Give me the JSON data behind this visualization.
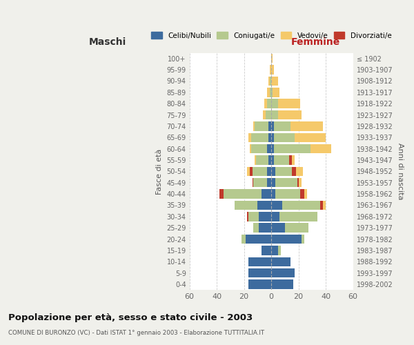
{
  "age_groups": [
    "0-4",
    "5-9",
    "10-14",
    "15-19",
    "20-24",
    "25-29",
    "30-34",
    "35-39",
    "40-44",
    "45-49",
    "50-54",
    "55-59",
    "60-64",
    "65-69",
    "70-74",
    "75-79",
    "80-84",
    "85-89",
    "90-94",
    "95-99",
    "100+"
  ],
  "birth_years": [
    "1998-2002",
    "1993-1997",
    "1988-1992",
    "1983-1987",
    "1978-1982",
    "1973-1977",
    "1968-1972",
    "1963-1967",
    "1958-1962",
    "1953-1957",
    "1948-1952",
    "1943-1947",
    "1938-1942",
    "1933-1937",
    "1928-1932",
    "1923-1927",
    "1918-1922",
    "1913-1917",
    "1908-1912",
    "1903-1907",
    "≤ 1902"
  ],
  "colors": {
    "celibi": "#3d6b9e",
    "coniugati": "#b5c98e",
    "vedovi": "#f5c96a",
    "divorziati": "#c0392b"
  },
  "maschi": {
    "celibi": [
      17,
      17,
      17,
      7,
      19,
      9,
      9,
      10,
      7,
      3,
      3,
      2,
      3,
      2,
      2,
      0,
      0,
      0,
      0,
      0,
      0
    ],
    "coniugati": [
      0,
      0,
      0,
      0,
      3,
      4,
      8,
      17,
      28,
      10,
      11,
      9,
      12,
      13,
      10,
      4,
      3,
      1,
      1,
      0,
      0
    ],
    "vedovi": [
      0,
      0,
      0,
      0,
      0,
      0,
      0,
      0,
      0,
      0,
      2,
      1,
      1,
      2,
      1,
      2,
      2,
      2,
      1,
      1,
      0
    ],
    "divorziati": [
      0,
      0,
      0,
      0,
      0,
      0,
      1,
      0,
      3,
      1,
      2,
      0,
      0,
      0,
      0,
      0,
      0,
      0,
      0,
      0,
      0
    ]
  },
  "femmine": {
    "celibi": [
      16,
      17,
      14,
      5,
      22,
      10,
      6,
      8,
      3,
      3,
      3,
      2,
      2,
      2,
      2,
      0,
      0,
      0,
      0,
      0,
      0
    ],
    "coniugati": [
      0,
      0,
      0,
      2,
      2,
      17,
      28,
      28,
      18,
      16,
      12,
      11,
      27,
      15,
      12,
      5,
      5,
      1,
      0,
      0,
      0
    ],
    "vedovi": [
      0,
      0,
      0,
      0,
      0,
      0,
      0,
      2,
      2,
      2,
      5,
      2,
      15,
      23,
      24,
      17,
      16,
      5,
      5,
      2,
      1
    ],
    "divorziati": [
      0,
      0,
      0,
      0,
      0,
      0,
      0,
      2,
      3,
      1,
      3,
      2,
      0,
      0,
      0,
      0,
      0,
      0,
      0,
      0,
      0
    ]
  },
  "xlim": 60,
  "title": "Popolazione per età, sesso e stato civile - 2003",
  "subtitle": "COMUNE DI BURONZO (VC) - Dati ISTAT 1° gennaio 2003 - Elaborazione TUTTITALIA.IT",
  "ylabel_left": "Fasce di età",
  "ylabel_right": "Anni di nascita",
  "xlabel_left": "Maschi",
  "xlabel_right": "Femmine",
  "bg_color": "#f0f0eb",
  "bar_bg": "#ffffff",
  "legend_labels": [
    "Celibi/Nubili",
    "Coniugati/e",
    "Vedovi/e",
    "Divorziati/e"
  ]
}
